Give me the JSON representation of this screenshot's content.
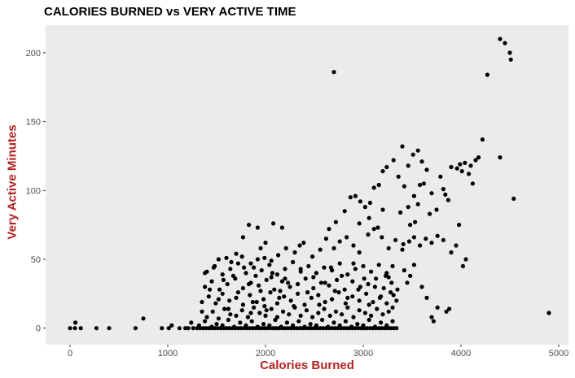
{
  "chart_data": {
    "type": "scatter",
    "title": "CALORIES BURNED vs VERY ACTIVE TIME",
    "xlabel": "Calories Burned",
    "ylabel": "Very Active Minutes",
    "xlim": [
      -250,
      5100
    ],
    "ylim": [
      -12,
      220
    ],
    "x_ticks": [
      0,
      1000,
      2000,
      3000,
      4000,
      5000
    ],
    "y_ticks": [
      0,
      50,
      100,
      150,
      200
    ],
    "label_color": "#b22222",
    "panel_color": "#ebebeb",
    "point_color": "#000000",
    "grid": false,
    "points": [
      [
        0,
        0
      ],
      [
        50,
        0
      ],
      [
        55,
        4
      ],
      [
        110,
        0
      ],
      [
        270,
        0
      ],
      [
        400,
        0
      ],
      [
        670,
        0
      ],
      [
        750,
        7
      ],
      [
        940,
        0
      ],
      [
        1010,
        0
      ],
      [
        1040,
        2
      ],
      [
        1120,
        0
      ],
      [
        1180,
        0
      ],
      [
        1210,
        0
      ],
      [
        1240,
        4
      ],
      [
        1260,
        0
      ],
      [
        1300,
        0
      ],
      [
        1330,
        0
      ],
      [
        1360,
        0
      ],
      [
        1390,
        0
      ],
      [
        1420,
        0
      ],
      [
        1450,
        0
      ],
      [
        1480,
        0
      ],
      [
        1510,
        0
      ],
      [
        1540,
        0
      ],
      [
        1570,
        0
      ],
      [
        1600,
        0
      ],
      [
        1630,
        0
      ],
      [
        1660,
        0
      ],
      [
        1690,
        0
      ],
      [
        1720,
        0
      ],
      [
        1750,
        0
      ],
      [
        1780,
        0
      ],
      [
        1810,
        0
      ],
      [
        1840,
        0
      ],
      [
        1870,
        0
      ],
      [
        1900,
        0
      ],
      [
        1930,
        0
      ],
      [
        1960,
        0
      ],
      [
        1990,
        0
      ],
      [
        2020,
        0
      ],
      [
        2050,
        0
      ],
      [
        2080,
        0
      ],
      [
        2110,
        0
      ],
      [
        2140,
        0
      ],
      [
        2170,
        0
      ],
      [
        2200,
        0
      ],
      [
        2230,
        0
      ],
      [
        2260,
        0
      ],
      [
        2290,
        0
      ],
      [
        2320,
        0
      ],
      [
        2350,
        0
      ],
      [
        2380,
        0
      ],
      [
        2410,
        0
      ],
      [
        2440,
        0
      ],
      [
        2470,
        0
      ],
      [
        2500,
        0
      ],
      [
        2530,
        0
      ],
      [
        2560,
        0
      ],
      [
        2590,
        0
      ],
      [
        2620,
        0
      ],
      [
        2650,
        0
      ],
      [
        2680,
        0
      ],
      [
        2710,
        0
      ],
      [
        2740,
        0
      ],
      [
        2770,
        0
      ],
      [
        2800,
        0
      ],
      [
        2830,
        0
      ],
      [
        2860,
        0
      ],
      [
        2890,
        0
      ],
      [
        2920,
        0
      ],
      [
        2950,
        0
      ],
      [
        2980,
        0
      ],
      [
        3010,
        0
      ],
      [
        3040,
        0
      ],
      [
        3070,
        0
      ],
      [
        3100,
        0
      ],
      [
        3130,
        0
      ],
      [
        3160,
        0
      ],
      [
        3190,
        0
      ],
      [
        3220,
        0
      ],
      [
        3250,
        0
      ],
      [
        3280,
        0
      ],
      [
        3310,
        0
      ],
      [
        3340,
        0
      ],
      [
        1320,
        2
      ],
      [
        1380,
        5
      ],
      [
        1450,
        1
      ],
      [
        1500,
        3
      ],
      [
        1560,
        2
      ],
      [
        1620,
        6
      ],
      [
        1680,
        1
      ],
      [
        1740,
        4
      ],
      [
        1800,
        2
      ],
      [
        1860,
        5
      ],
      [
        1920,
        1
      ],
      [
        1980,
        3
      ],
      [
        2040,
        2
      ],
      [
        2100,
        6
      ],
      [
        2160,
        1
      ],
      [
        2220,
        4
      ],
      [
        2280,
        2
      ],
      [
        2340,
        5
      ],
      [
        2400,
        1
      ],
      [
        2460,
        3
      ],
      [
        2520,
        2
      ],
      [
        2580,
        6
      ],
      [
        2640,
        1
      ],
      [
        2700,
        4
      ],
      [
        2760,
        2
      ],
      [
        2820,
        5
      ],
      [
        2880,
        1
      ],
      [
        2940,
        3
      ],
      [
        3000,
        2
      ],
      [
        3060,
        6
      ],
      [
        3120,
        1
      ],
      [
        3180,
        4
      ],
      [
        3240,
        2
      ],
      [
        3300,
        5
      ],
      [
        1400,
        8
      ],
      [
        1460,
        12
      ],
      [
        1520,
        7
      ],
      [
        1580,
        14
      ],
      [
        1640,
        10
      ],
      [
        1700,
        9
      ],
      [
        1760,
        13
      ],
      [
        1820,
        8
      ],
      [
        1880,
        15
      ],
      [
        1940,
        11
      ],
      [
        2000,
        9
      ],
      [
        2060,
        14
      ],
      [
        2120,
        8
      ],
      [
        2180,
        12
      ],
      [
        2240,
        10
      ],
      [
        2300,
        15
      ],
      [
        2360,
        9
      ],
      [
        2420,
        13
      ],
      [
        2480,
        8
      ],
      [
        2540,
        11
      ],
      [
        2600,
        14
      ],
      [
        2660,
        9
      ],
      [
        2720,
        12
      ],
      [
        2780,
        10
      ],
      [
        2840,
        15
      ],
      [
        2900,
        8
      ],
      [
        2960,
        13
      ],
      [
        3020,
        11
      ],
      [
        3080,
        9
      ],
      [
        3140,
        14
      ],
      [
        3200,
        10
      ],
      [
        3260,
        12
      ],
      [
        1350,
        19
      ],
      [
        1420,
        23
      ],
      [
        1490,
        18
      ],
      [
        1560,
        25
      ],
      [
        1630,
        20
      ],
      [
        1700,
        22
      ],
      [
        1770,
        17
      ],
      [
        1840,
        24
      ],
      [
        1910,
        19
      ],
      [
        1980,
        21
      ],
      [
        2050,
        26
      ],
      [
        2120,
        18
      ],
      [
        2190,
        23
      ],
      [
        2260,
        20
      ],
      [
        2330,
        25
      ],
      [
        2400,
        17
      ],
      [
        2470,
        22
      ],
      [
        2540,
        24
      ],
      [
        2610,
        19
      ],
      [
        2680,
        21
      ],
      [
        2750,
        26
      ],
      [
        2820,
        18
      ],
      [
        2890,
        23
      ],
      [
        2960,
        20
      ],
      [
        3030,
        25
      ],
      [
        3100,
        19
      ],
      [
        3170,
        22
      ],
      [
        3240,
        18
      ],
      [
        3310,
        24
      ],
      [
        1380,
        30
      ],
      [
        1450,
        34
      ],
      [
        1530,
        28
      ],
      [
        1610,
        32
      ],
      [
        1690,
        36
      ],
      [
        1770,
        29
      ],
      [
        1850,
        33
      ],
      [
        1930,
        31
      ],
      [
        2010,
        35
      ],
      [
        2090,
        28
      ],
      [
        2170,
        34
      ],
      [
        2250,
        30
      ],
      [
        2330,
        32
      ],
      [
        2410,
        36
      ],
      [
        2490,
        29
      ],
      [
        2570,
        33
      ],
      [
        2650,
        31
      ],
      [
        2730,
        35
      ],
      [
        2810,
        28
      ],
      [
        2890,
        34
      ],
      [
        2970,
        30
      ],
      [
        3050,
        32
      ],
      [
        3130,
        36
      ],
      [
        3210,
        29
      ],
      [
        3290,
        33
      ],
      [
        1400,
        41
      ],
      [
        1480,
        45
      ],
      [
        1560,
        39
      ],
      [
        1640,
        43
      ],
      [
        1720,
        47
      ],
      [
        1800,
        40
      ],
      [
        1880,
        44
      ],
      [
        1960,
        42
      ],
      [
        2040,
        46
      ],
      [
        2120,
        39
      ],
      [
        2200,
        43
      ],
      [
        2280,
        48
      ],
      [
        2360,
        41
      ],
      [
        2440,
        45
      ],
      [
        2520,
        40
      ],
      [
        2600,
        44
      ],
      [
        2680,
        42
      ],
      [
        2760,
        47
      ],
      [
        2840,
        39
      ],
      [
        2920,
        43
      ],
      [
        3000,
        45
      ],
      [
        3080,
        41
      ],
      [
        3160,
        46
      ],
      [
        3240,
        40
      ],
      [
        1520,
        50
      ],
      [
        1650,
        48
      ],
      [
        1760,
        52
      ],
      [
        1850,
        47
      ],
      [
        1920,
        50
      ],
      [
        1990,
        51
      ],
      [
        2060,
        49
      ],
      [
        2130,
        53
      ],
      [
        2300,
        55
      ],
      [
        2350,
        60
      ],
      [
        2390,
        62
      ],
      [
        2480,
        52
      ],
      [
        2560,
        57
      ],
      [
        2620,
        65
      ],
      [
        2700,
        58
      ],
      [
        2760,
        63
      ],
      [
        2830,
        66
      ],
      [
        2900,
        60
      ],
      [
        2960,
        55
      ],
      [
        3050,
        68
      ],
      [
        3110,
        72
      ],
      [
        3190,
        66
      ],
      [
        3260,
        58
      ],
      [
        3330,
        64
      ],
      [
        3410,
        61
      ],
      [
        3470,
        63
      ],
      [
        3520,
        66
      ],
      [
        3580,
        60
      ],
      [
        3640,
        65
      ],
      [
        3700,
        62
      ],
      [
        3760,
        67
      ],
      [
        3820,
        64
      ],
      [
        1770,
        66
      ],
      [
        1830,
        75
      ],
      [
        1920,
        73
      ],
      [
        2080,
        76
      ],
      [
        2170,
        73
      ],
      [
        2000,
        62
      ],
      [
        1950,
        58
      ],
      [
        2210,
        58
      ],
      [
        1700,
        54
      ],
      [
        1600,
        51
      ],
      [
        1900,
        38
      ],
      [
        2060,
        37
      ],
      [
        2200,
        36
      ],
      [
        2150,
        27
      ],
      [
        1990,
        16
      ],
      [
        1850,
        11
      ],
      [
        2700,
        186
      ],
      [
        2650,
        72
      ],
      [
        2720,
        77
      ],
      [
        2810,
        85
      ],
      [
        2870,
        95
      ],
      [
        2920,
        96
      ],
      [
        2970,
        92
      ],
      [
        3020,
        88
      ],
      [
        3070,
        91
      ],
      [
        3110,
        102
      ],
      [
        3160,
        104
      ],
      [
        3200,
        114
      ],
      [
        3240,
        117
      ],
      [
        3200,
        86
      ],
      [
        3150,
        73
      ],
      [
        3060,
        80
      ],
      [
        2960,
        76
      ],
      [
        3310,
        122
      ],
      [
        3360,
        110
      ],
      [
        3400,
        132
      ],
      [
        3460,
        118
      ],
      [
        3510,
        126
      ],
      [
        3560,
        129
      ],
      [
        3600,
        121
      ],
      [
        3650,
        115
      ],
      [
        3580,
        104
      ],
      [
        3520,
        96
      ],
      [
        3460,
        88
      ],
      [
        3420,
        103
      ],
      [
        3380,
        84
      ],
      [
        3480,
        75
      ],
      [
        3530,
        77
      ],
      [
        3560,
        90
      ],
      [
        3620,
        105
      ],
      [
        3680,
        83
      ],
      [
        3700,
        98
      ],
      [
        3750,
        86
      ],
      [
        3790,
        110
      ],
      [
        3820,
        101
      ],
      [
        3840,
        97
      ],
      [
        3870,
        93
      ],
      [
        3900,
        117
      ],
      [
        3960,
        116
      ],
      [
        3990,
        119
      ],
      [
        4010,
        114
      ],
      [
        4040,
        120
      ],
      [
        4080,
        112
      ],
      [
        4100,
        118
      ],
      [
        4120,
        105
      ],
      [
        4150,
        122
      ],
      [
        4180,
        124
      ],
      [
        4220,
        137
      ],
      [
        4270,
        184
      ],
      [
        4400,
        210
      ],
      [
        4450,
        207
      ],
      [
        4500,
        200
      ],
      [
        4510,
        195
      ],
      [
        4540,
        94
      ],
      [
        4400,
        124
      ],
      [
        3600,
        30
      ],
      [
        3650,
        22
      ],
      [
        3700,
        8
      ],
      [
        3720,
        5
      ],
      [
        3760,
        15
      ],
      [
        3850,
        12
      ],
      [
        3880,
        14
      ],
      [
        3980,
        75
      ],
      [
        3950,
        60
      ],
      [
        3900,
        55
      ],
      [
        4020,
        45
      ],
      [
        4050,
        50
      ],
      [
        3480,
        38
      ],
      [
        3520,
        46
      ],
      [
        3400,
        57
      ],
      [
        3420,
        42
      ],
      [
        3450,
        33
      ],
      [
        3300,
        45
      ],
      [
        3260,
        37
      ],
      [
        3350,
        28
      ],
      [
        3300,
        15
      ],
      [
        3340,
        20
      ],
      [
        4900,
        11
      ],
      [
        1350,
        12
      ],
      [
        1380,
        40
      ],
      [
        1430,
        28
      ],
      [
        1470,
        44
      ],
      [
        1520,
        21
      ],
      [
        1570,
        35
      ],
      [
        1620,
        14
      ],
      [
        1670,
        38
      ],
      [
        1720,
        26
      ],
      [
        1780,
        44
      ],
      [
        1830,
        32
      ],
      [
        1870,
        19
      ],
      [
        1950,
        27
      ],
      [
        2010,
        13
      ],
      [
        2070,
        40
      ],
      [
        2140,
        22
      ],
      [
        2230,
        33
      ],
      [
        2290,
        16
      ],
      [
        2360,
        43
      ],
      [
        2430,
        26
      ],
      [
        2490,
        37
      ],
      [
        2550,
        17
      ],
      [
        2610,
        33
      ],
      [
        2670,
        44
      ],
      [
        2710,
        27
      ],
      [
        2780,
        38
      ],
      [
        2840,
        22
      ],
      [
        2900,
        47
      ],
      [
        2950,
        28
      ],
      [
        3010,
        36
      ],
      [
        3060,
        17
      ],
      [
        3120,
        30
      ],
      [
        3180,
        23
      ],
      [
        3230,
        38
      ],
      [
        3280,
        26
      ]
    ]
  }
}
